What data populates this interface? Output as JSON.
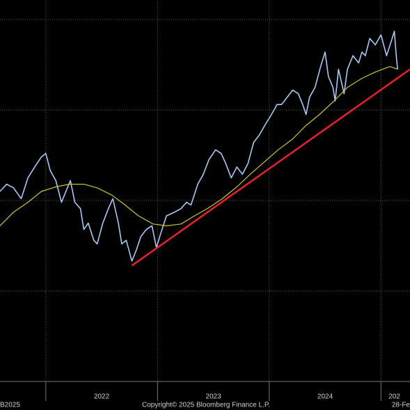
{
  "chart_data": {
    "type": "line",
    "xlim": [
      2021.59,
      2025.26
    ],
    "ylim": [
      0,
      4.2
    ],
    "xticks": [
      2022,
      2023,
      2024,
      2025
    ],
    "yticks": [
      1,
      2,
      3,
      4
    ],
    "grid": true,
    "x_labels": [
      {
        "value": 2022.5,
        "label": "2022"
      },
      {
        "value": 2023.5,
        "label": "2023"
      },
      {
        "value": 2024.5,
        "label": "2024"
      },
      {
        "value": 2025.12,
        "label": "202"
      }
    ],
    "series": [
      {
        "color": "#a8caf2",
        "width": 1.6,
        "x": [
          2021.59,
          2021.65,
          2021.71,
          2021.78,
          2021.84,
          2021.9,
          2021.96,
          2022.0,
          2022.04,
          2022.09,
          2022.14,
          2022.18,
          2022.22,
          2022.26,
          2022.31,
          2022.34,
          2022.38,
          2022.43,
          2022.46,
          2022.51,
          2022.56,
          2022.6,
          2022.65,
          2022.68,
          2022.72,
          2022.77,
          2022.81,
          2022.85,
          2022.9,
          2022.95,
          2022.99,
          2023.03,
          2023.08,
          2023.15,
          2023.21,
          2023.26,
          2023.3,
          2023.36,
          2023.41,
          2023.46,
          2023.52,
          2023.57,
          2023.61,
          2023.66,
          2023.71,
          2023.76,
          2023.81,
          2023.86,
          2023.91,
          2023.96,
          2024.02,
          2024.07,
          2024.11,
          2024.16,
          2024.21,
          2024.26,
          2024.3,
          2024.33,
          2024.36,
          2024.41,
          2024.46,
          2024.5,
          2024.53,
          2024.57,
          2024.59,
          2024.62,
          2024.67,
          2024.7,
          2024.75,
          2024.8,
          2024.83,
          2024.86,
          2024.9,
          2024.95,
          2025.0,
          2025.05,
          2025.09,
          2025.12,
          2025.14,
          2025.15
        ],
        "values": [
          2.1,
          2.18,
          2.14,
          2.02,
          2.25,
          2.37,
          2.48,
          2.52,
          2.33,
          2.22,
          1.98,
          2.1,
          2.22,
          1.98,
          1.91,
          1.68,
          1.75,
          1.56,
          1.52,
          1.75,
          1.91,
          2.02,
          1.75,
          1.52,
          1.56,
          1.33,
          1.45,
          1.6,
          1.68,
          1.72,
          1.48,
          1.64,
          1.83,
          1.87,
          1.91,
          1.98,
          1.95,
          2.18,
          2.29,
          2.45,
          2.56,
          2.52,
          2.41,
          2.25,
          2.37,
          2.29,
          2.41,
          2.64,
          2.72,
          2.83,
          2.95,
          3.06,
          3.06,
          3.14,
          3.22,
          3.18,
          3.06,
          2.95,
          3.14,
          3.25,
          3.48,
          3.64,
          3.37,
          3.25,
          3.1,
          3.45,
          3.18,
          3.45,
          3.6,
          3.52,
          3.64,
          3.6,
          3.79,
          3.72,
          3.83,
          3.6,
          3.75,
          3.87,
          3.56,
          3.45
        ]
      },
      {
        "color": "#c9c435",
        "width": 1.2,
        "x": [
          2021.59,
          2021.71,
          2021.84,
          2021.96,
          2022.09,
          2022.21,
          2022.34,
          2022.46,
          2022.59,
          2022.71,
          2022.83,
          2022.96,
          2023.08,
          2023.21,
          2023.33,
          2023.46,
          2023.58,
          2023.71,
          2023.83,
          2023.96,
          2024.08,
          2024.21,
          2024.33,
          2024.45,
          2024.58,
          2024.7,
          2024.83,
          2024.95,
          2025.08,
          2025.15
        ],
        "values": [
          1.72,
          1.87,
          1.98,
          2.1,
          2.15,
          2.18,
          2.18,
          2.14,
          2.06,
          1.95,
          1.83,
          1.74,
          1.72,
          1.74,
          1.83,
          1.92,
          2.02,
          2.15,
          2.29,
          2.43,
          2.56,
          2.68,
          2.83,
          2.95,
          3.1,
          3.25,
          3.35,
          3.42,
          3.48,
          3.45
        ]
      },
      {
        "color": "#e0222b",
        "width": 2.6,
        "x": [
          2022.77,
          2025.26
        ],
        "values": [
          1.28,
          3.45
        ]
      }
    ]
  },
  "footer": {
    "left": "B2025",
    "copyright": "Copyright© 2025 Bloomberg Finance L.P.",
    "right": "28-Fe"
  }
}
